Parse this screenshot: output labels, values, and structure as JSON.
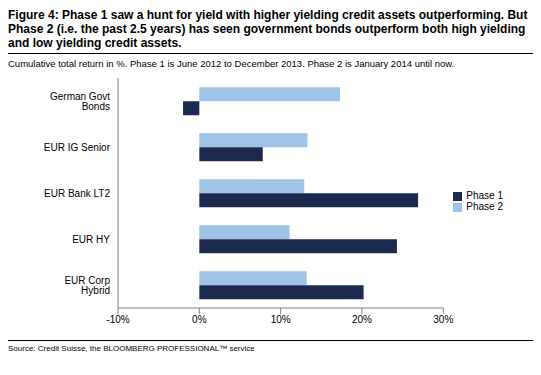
{
  "chart_data": {
    "type": "bar",
    "orientation": "horizontal",
    "title": "Figure 4: Phase 1 saw a hunt for yield with higher yielding credit assets outperforming. But Phase 2 (i.e. the past 2.5 years) has seen government bonds outperform both high yielding and low yielding credit assets.",
    "subtitle": "Cumulative total return in %. Phase 1 is June 2012 to December 2013. Phase 2 is January 2014 until now.",
    "source": "Source: Credit Suisse, the BLOOMBERG PROFESSIONAL™ service",
    "categories": [
      "German Govt Bonds",
      "EUR IG Senior",
      "EUR Bank LT2",
      "EUR HY",
      "EUR Corp Hybrid"
    ],
    "series": [
      {
        "name": "Phase 2",
        "color": "#9dc3e6",
        "values": [
          17.3,
          13.3,
          12.9,
          11.1,
          13.2
        ]
      },
      {
        "name": "Phase 1",
        "color": "#1b2a4e",
        "values": [
          -2.0,
          7.8,
          26.9,
          24.3,
          20.2
        ]
      }
    ],
    "xlim": [
      -10,
      30
    ],
    "xticks": [
      {
        "value": -10,
        "label": "-10%"
      },
      {
        "value": 0,
        "label": "0%"
      },
      {
        "value": 10,
        "label": "10%"
      },
      {
        "value": 20,
        "label": "20%"
      },
      {
        "value": 30,
        "label": "30%"
      }
    ],
    "grid": false,
    "legend": "right"
  }
}
